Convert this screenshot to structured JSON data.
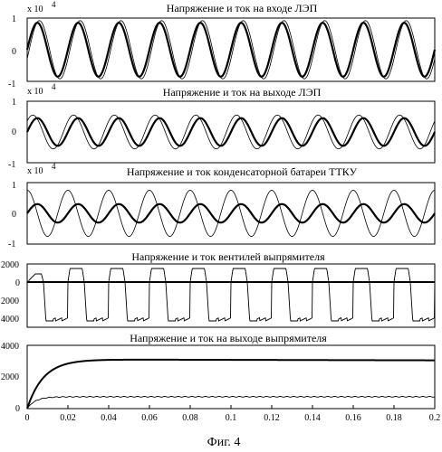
{
  "figure": {
    "caption": "Фиг. 4"
  },
  "colors": {
    "ink": "#000000",
    "background": "#ffffff"
  },
  "chart_data": [
    {
      "type": "line",
      "title": "Напряжение и ток на входе ЛЭП",
      "scale_label": "x 10",
      "scale_exponent": "4",
      "xlim": [
        0,
        0.2
      ],
      "ylim": [
        -1,
        1
      ],
      "yticks": [
        "1",
        "0",
        "-1"
      ],
      "grid": false,
      "series": [
        {
          "waveform": "sine",
          "amplitude": 0.85,
          "frequency_hz": 50,
          "phase_deg": 0,
          "line_width": "thick"
        },
        {
          "waveform": "sine",
          "amplitude": 0.92,
          "frequency_hz": 50,
          "phase_deg": -18,
          "line_width": "thin"
        }
      ]
    },
    {
      "type": "line",
      "title": "Напряжение и ток на выходе ЛЭП",
      "scale_label": "x 10",
      "scale_exponent": "4",
      "xlim": [
        0,
        0.2
      ],
      "ylim": [
        -1,
        1
      ],
      "yticks": [
        "1",
        "0",
        "-1"
      ],
      "grid": false,
      "series": [
        {
          "waveform": "sine",
          "amplitude": 0.45,
          "frequency_hz": 50,
          "phase_deg": 0,
          "line_width": "thick"
        },
        {
          "waveform": "sine",
          "amplitude": 0.55,
          "frequency_hz": 50,
          "phase_deg": 40,
          "line_width": "thin"
        }
      ]
    },
    {
      "type": "line",
      "title": "Напряжение и ток конденсаторной батареи ТТКУ",
      "scale_label": "x 10",
      "scale_exponent": "4",
      "xlim": [
        0,
        0.2
      ],
      "ylim": [
        -1,
        1
      ],
      "yticks": [
        "1",
        "0",
        "-1"
      ],
      "grid": false,
      "series": [
        {
          "waveform": "sine",
          "amplitude": 0.3,
          "frequency_hz": 50,
          "phase_deg": 0,
          "line_width": "thick"
        },
        {
          "waveform": "sine",
          "amplitude": 0.75,
          "frequency_hz": 50,
          "phase_deg": 90,
          "line_width": "thin"
        }
      ]
    },
    {
      "type": "line",
      "title": "Напряжение и ток вентилей выпрямителя",
      "xlim": [
        0,
        0.2
      ],
      "ylim": [
        -5000,
        2000
      ],
      "ytick_values": [
        2000,
        0,
        -2000,
        -4000
      ],
      "yticks": [
        "2000",
        "0",
        "2000",
        "4000"
      ],
      "grid": false,
      "series": [
        {
          "waveform": "flat",
          "value": 0,
          "line_width": "thick"
        },
        {
          "waveform": "valve_pulses",
          "pulse_value": 1500,
          "first_pulse_value": 900,
          "blocking_value": -4300,
          "period_s": 0.02,
          "line_width": "thin"
        }
      ]
    },
    {
      "type": "line",
      "title": "Напряжение и ток на выходе выпрямителя",
      "xlim": [
        0,
        0.2
      ],
      "ylim": [
        0,
        4000
      ],
      "xticks": [
        "0",
        "0.02",
        "0.04",
        "0.06",
        "0.08",
        "0.1",
        "0.12",
        "0.14",
        "0.16",
        "0.18",
        "0.2"
      ],
      "yticks": [
        "4000",
        "2000",
        "0"
      ],
      "grid": false,
      "series": [
        {
          "waveform": "rise",
          "steady_value": 3100,
          "time_constant_s": 0.008,
          "line_width": "thick"
        },
        {
          "waveform": "rise_ripple",
          "steady_value": 750,
          "time_constant_s": 0.004,
          "line_width": "thin"
        }
      ]
    }
  ]
}
